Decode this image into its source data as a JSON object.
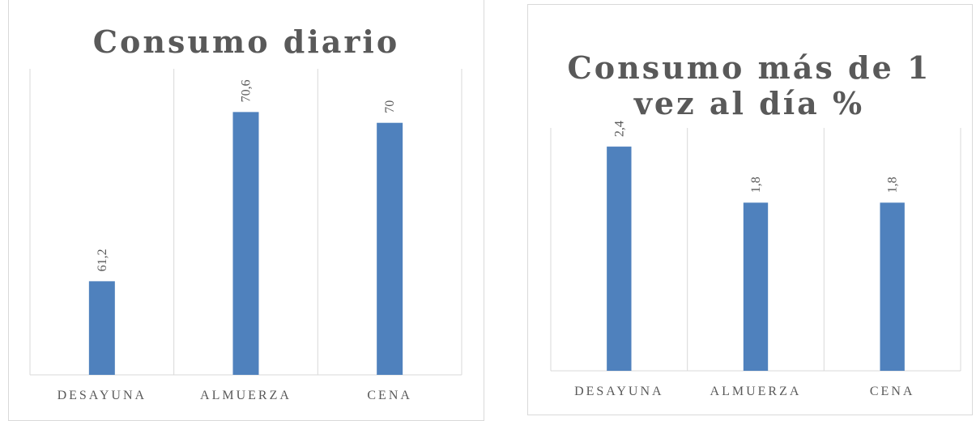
{
  "chart_data": [
    {
      "type": "bar",
      "title": "Consumo diario",
      "categories": [
        "DESAYUNA",
        "ALMUERZA",
        "CENA"
      ],
      "values": [
        61.2,
        70.6,
        70
      ],
      "value_labels": [
        "61,2",
        "70,6",
        "70"
      ],
      "color": "#4f81bd",
      "ylim": [
        56,
        73
      ]
    },
    {
      "type": "bar",
      "title": "Consumo más de 1 vez al día %",
      "categories": [
        "DESAYUNA",
        "ALMUERZA",
        "CENA"
      ],
      "values": [
        2.4,
        1.8,
        1.8
      ],
      "value_labels": [
        "2,4",
        "1,8",
        "1,8"
      ],
      "color": "#4f81bd",
      "ylim": [
        0,
        2.6
      ]
    }
  ]
}
